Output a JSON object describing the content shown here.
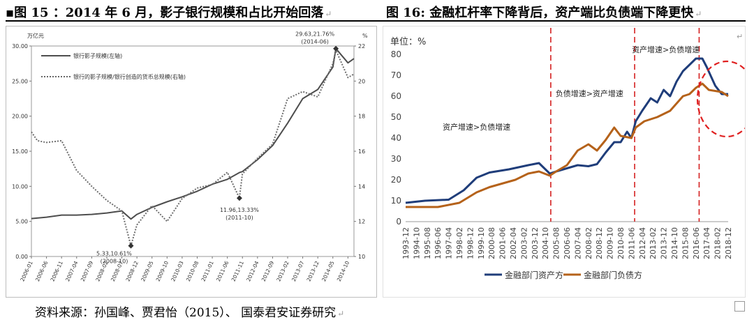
{
  "figure_left": {
    "caption": "▪图 15 ：2014 年 6 月，影子银行规模和占比开始回落",
    "caption_mark": "↵",
    "chart_data": {
      "type": "line",
      "left_axis_unit": "万亿元",
      "right_axis_unit": "%",
      "ylim_left": [
        0,
        30
      ],
      "ylim_right": [
        10,
        22
      ],
      "left_ticks": [
        "0.00",
        "5.00",
        "10.00",
        "15.00",
        "20.00",
        "25.00",
        "30.00"
      ],
      "right_ticks": [
        "10",
        "12",
        "14",
        "16",
        "18",
        "20",
        "22"
      ],
      "x_ticks": [
        "2006-01",
        "2006-06",
        "2006-11",
        "2007-04",
        "2007-09",
        "2008-02",
        "2008-07",
        "2008-12",
        "2009-05",
        "2009-10",
        "2010-03",
        "2010-08",
        "2011-01",
        "2011-06",
        "2011-11",
        "2012-04",
        "2012-09",
        "2013-02",
        "2013-07",
        "2013-12",
        "2014-05",
        "2014-10"
      ],
      "x_start": "2006-01",
      "series": [
        {
          "name": "银行影子规模(左轴)",
          "axis": "left",
          "style": "solid",
          "x": [
            "2006-01",
            "2006-06",
            "2006-11",
            "2007-04",
            "2007-09",
            "2008-02",
            "2008-07",
            "2008-10",
            "2008-12",
            "2009-05",
            "2009-10",
            "2010-03",
            "2010-08",
            "2011-01",
            "2011-06",
            "2011-10",
            "2011-11",
            "2012-04",
            "2012-09",
            "2013-02",
            "2013-07",
            "2013-12",
            "2014-05",
            "2014-06",
            "2014-10",
            "2014-12"
          ],
          "y": [
            5.4,
            5.6,
            5.9,
            5.9,
            6.0,
            6.2,
            6.5,
            5.33,
            6.0,
            7.0,
            7.8,
            8.5,
            9.3,
            10.3,
            11.0,
            11.96,
            12.1,
            13.8,
            15.8,
            19.0,
            22.5,
            23.8,
            27.0,
            29.63,
            27.6,
            28.2
          ]
        },
        {
          "name": "银行的影子规模/银行创造的货币总规模(右轴)",
          "axis": "right",
          "style": "dotted",
          "x": [
            "2006-01",
            "2006-03",
            "2006-06",
            "2006-11",
            "2007-04",
            "2007-09",
            "2008-02",
            "2008-07",
            "2008-10",
            "2008-12",
            "2009-05",
            "2009-10",
            "2010-03",
            "2010-08",
            "2011-01",
            "2011-06",
            "2011-10",
            "2011-11",
            "2012-04",
            "2012-09",
            "2013-02",
            "2013-07",
            "2013-12",
            "2014-05",
            "2014-06",
            "2014-10",
            "2014-12"
          ],
          "y": [
            17.1,
            16.6,
            16.5,
            16.6,
            14.9,
            14.0,
            13.2,
            12.6,
            10.61,
            11.8,
            12.9,
            12.0,
            13.3,
            13.9,
            14.1,
            14.8,
            13.33,
            14.7,
            15.6,
            16.4,
            19.0,
            19.4,
            19.1,
            21.0,
            21.76,
            20.2,
            20.4
          ]
        }
      ],
      "annotations": [
        {
          "text": "29.63,21.76%",
          "sub": "(2014-06)"
        },
        {
          "text": "11.96,13.33%",
          "sub": "(2011-10)"
        },
        {
          "text": "5.33,10.61%",
          "sub": "(2008-10)"
        }
      ]
    }
  },
  "figure_right": {
    "caption": "图 16: 金融杠杆率下降背后，资产端比负债端下降更快",
    "caption_mark": "↵",
    "chart_data": {
      "type": "line",
      "ylabel": "单位：%",
      "ylim": [
        0,
        80
      ],
      "y_ticks": [
        "0",
        "10",
        "20",
        "30",
        "40",
        "50",
        "60",
        "70",
        "80"
      ],
      "x_ticks": [
        "1993-12",
        "1994-10",
        "1995-08",
        "1996-06",
        "1997-04",
        "1998-02",
        "1998-12",
        "1999-10",
        "2000-08",
        "2001-06",
        "2002-04",
        "2003-02",
        "2003-12",
        "2004-10",
        "2005-08",
        "2006-06",
        "2007-04",
        "2008-02",
        "2008-12",
        "2009-10",
        "2010-08",
        "2011-06",
        "2012-04",
        "2013-02",
        "2013-12",
        "2014-10",
        "2015-08",
        "2016-06",
        "2017-04",
        "2018-02",
        "2018-12"
      ],
      "x_start": "1993-12",
      "dividers": [
        "2005-03",
        "2011-09",
        "2016-09"
      ],
      "series": [
        {
          "name": "金融部门资产方",
          "color": "#1f3d7a",
          "x": [
            "1993-12",
            "1995-06",
            "1997-04",
            "1998-06",
            "1999-06",
            "2000-06",
            "2001-12",
            "2003-06",
            "2004-04",
            "2005-02",
            "2005-08",
            "2006-06",
            "2007-04",
            "2008-02",
            "2008-10",
            "2009-06",
            "2010-02",
            "2010-08",
            "2011-02",
            "2011-06",
            "2011-10",
            "2012-04",
            "2012-12",
            "2013-06",
            "2013-12",
            "2014-06",
            "2014-12",
            "2015-06",
            "2015-12",
            "2016-06",
            "2016-12",
            "2017-04",
            "2017-12",
            "2018-06",
            "2018-12"
          ],
          "y": [
            9,
            10,
            10.5,
            15,
            21,
            23.5,
            25,
            27,
            28,
            23,
            24,
            25.5,
            27,
            26.5,
            27.5,
            33,
            38,
            38,
            43,
            40,
            48,
            53,
            59,
            57,
            63,
            60,
            67,
            72,
            75,
            78,
            78,
            74,
            65,
            61,
            61
          ]
        },
        {
          "name": "金融部门负债方",
          "color": "#b5621a",
          "x": [
            "1993-12",
            "1996-06",
            "1998-02",
            "1999-06",
            "2000-06",
            "2002-06",
            "2003-06",
            "2004-04",
            "2005-02",
            "2005-08",
            "2006-06",
            "2007-04",
            "2008-02",
            "2008-10",
            "2009-06",
            "2010-02",
            "2010-08",
            "2011-06",
            "2011-10",
            "2012-06",
            "2013-06",
            "2014-06",
            "2015-06",
            "2015-12",
            "2016-06",
            "2016-12",
            "2017-06",
            "2018-06",
            "2018-12"
          ],
          "y": [
            7,
            7,
            9,
            14,
            16.5,
            20,
            23,
            24,
            22,
            24,
            27,
            34,
            37,
            34,
            39,
            45,
            41,
            40,
            45,
            48,
            50,
            53,
            60,
            61,
            64,
            66,
            63,
            62,
            60
          ]
        }
      ],
      "annotations": [
        {
          "text": "资产增速>负债增速"
        },
        {
          "text": "负债增速>资产增速"
        },
        {
          "text": "资产增速>负债增速"
        }
      ]
    }
  },
  "source": "资料来源：孙国峰、贾君怡（2015）、 国泰君安证券研究",
  "source_mark": "↵"
}
